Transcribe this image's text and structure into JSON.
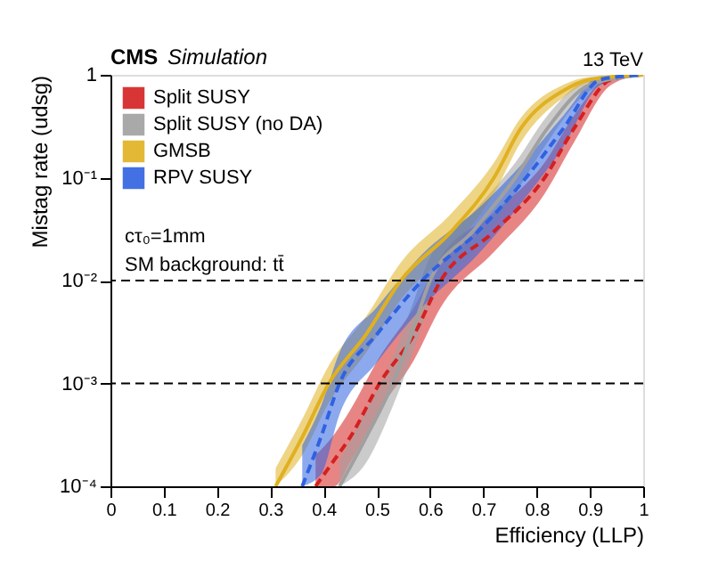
{
  "chart_data": {
    "type": "line",
    "title": "CMS",
    "subtitle": "Simulation",
    "xlabel": "Efficiency (LLP)",
    "ylabel": "Mistag rate (udsg)",
    "annotations": [
      "13 TeV",
      "cτ₀=1mm",
      "SM background: tt̄"
    ],
    "log": "y",
    "xlim": [
      0,
      1
    ],
    "ylim": [
      0.0001,
      1
    ],
    "xticks": [
      0,
      0.1,
      0.2,
      0.3,
      0.4,
      0.5,
      0.6,
      0.7,
      0.8,
      0.9,
      1
    ],
    "yticks": [
      {
        "value": 0.0001,
        "label": "10⁻⁴"
      },
      {
        "value": 0.001,
        "label": "10⁻³"
      },
      {
        "value": 0.01,
        "label": "10⁻²"
      },
      {
        "value": 0.1,
        "label": "10⁻¹"
      },
      1
    ],
    "legend": "top left",
    "grid": false,
    "ref_lines": [
      {
        "axis": "y",
        "value": 0.01,
        "color": "#000000",
        "line_style": "dashed"
      },
      {
        "axis": "y",
        "value": 0.001,
        "color": "#000000",
        "line_style": "dashed"
      }
    ],
    "series": [
      {
        "name": "Split SUSY",
        "color": "#d42020",
        "line_style": "dashed",
        "x": [
          0.385,
          0.42,
          0.45,
          0.505,
          0.57,
          0.62,
          0.72,
          0.815,
          0.87,
          0.94,
          1.0
        ],
        "values": [
          0.0001,
          0.00018,
          0.0003,
          0.001,
          0.003,
          0.01,
          0.03,
          0.1,
          0.3,
          0.9,
          1
        ],
        "lower": [
          0.0001,
          0.0001,
          0.00017,
          0.00055,
          0.0017,
          0.0055,
          0.019,
          0.07,
          0.22,
          0.8,
          1
        ],
        "upper": [
          0.0002,
          0.00032,
          0.00055,
          0.0018,
          0.0055,
          0.017,
          0.046,
          0.14,
          0.4,
          0.97,
          1
        ]
      },
      {
        "name": "Split SUSY (no DA)",
        "color": "#a0a0a0",
        "line_style": "solid",
        "x": [
          0.43,
          0.48,
          0.53,
          0.565,
          0.6,
          0.68,
          0.76,
          0.82,
          0.9,
          1.0
        ],
        "values": [
          0.0001,
          0.0003,
          0.001,
          0.003,
          0.01,
          0.03,
          0.1,
          0.3,
          0.8,
          1
        ],
        "lower": [
          0.0001,
          0.00017,
          0.0006,
          0.0018,
          0.006,
          0.019,
          0.07,
          0.22,
          0.7,
          1
        ],
        "upper": [
          0.00018,
          0.00055,
          0.0018,
          0.0055,
          0.017,
          0.046,
          0.14,
          0.4,
          0.9,
          1
        ]
      },
      {
        "name": "GMSB",
        "color": "#e0b020",
        "line_style": "solid",
        "x": [
          0.31,
          0.36,
          0.41,
          0.48,
          0.545,
          0.64,
          0.72,
          0.77,
          0.85,
          0.9,
          1.0
        ],
        "values": [
          0.0001,
          0.0003,
          0.001,
          0.003,
          0.01,
          0.03,
          0.1,
          0.3,
          0.7,
          0.9,
          1
        ],
        "lower": [
          0.0001,
          0.0002,
          0.00065,
          0.002,
          0.0065,
          0.02,
          0.07,
          0.22,
          0.6,
          0.85,
          1
        ],
        "upper": [
          0.00015,
          0.00045,
          0.0015,
          0.0045,
          0.015,
          0.045,
          0.14,
          0.38,
          0.8,
          0.95,
          1
        ]
      },
      {
        "name": "RPV SUSY",
        "color": "#2f62e0",
        "line_style": "dashed",
        "x": [
          0.36,
          0.395,
          0.43,
          0.5,
          0.585,
          0.69,
          0.78,
          0.85,
          0.92,
          1.0
        ],
        "values": [
          0.0001,
          0.0003,
          0.001,
          0.003,
          0.01,
          0.03,
          0.1,
          0.3,
          0.9,
          1
        ],
        "lower": [
          0.0001,
          0.00013,
          0.0005,
          0.0016,
          0.0055,
          0.018,
          0.065,
          0.2,
          0.8,
          1
        ],
        "upper": [
          0.00025,
          0.0006,
          0.002,
          0.0055,
          0.018,
          0.05,
          0.15,
          0.4,
          0.97,
          1
        ]
      }
    ]
  }
}
